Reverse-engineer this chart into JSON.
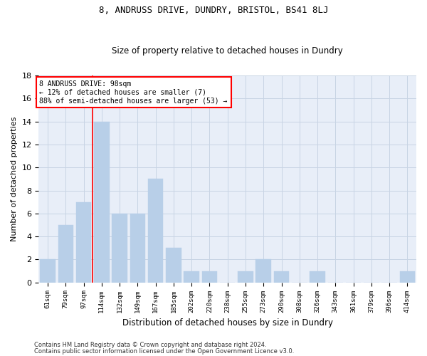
{
  "title1": "8, ANDRUSS DRIVE, DUNDRY, BRISTOL, BS41 8LJ",
  "title2": "Size of property relative to detached houses in Dundry",
  "xlabel": "Distribution of detached houses by size in Dundry",
  "ylabel": "Number of detached properties",
  "categories": [
    "61sqm",
    "79sqm",
    "97sqm",
    "114sqm",
    "132sqm",
    "149sqm",
    "167sqm",
    "185sqm",
    "202sqm",
    "220sqm",
    "238sqm",
    "255sqm",
    "273sqm",
    "290sqm",
    "308sqm",
    "326sqm",
    "343sqm",
    "361sqm",
    "379sqm",
    "396sqm",
    "414sqm"
  ],
  "values": [
    2,
    5,
    7,
    14,
    6,
    6,
    9,
    3,
    1,
    1,
    0,
    1,
    2,
    1,
    0,
    1,
    0,
    0,
    0,
    0,
    1
  ],
  "bar_color": "#b8cfe8",
  "bar_edgecolor": "#b8cfe8",
  "redline_x": 2.5,
  "annotation_title": "8 ANDRUSS DRIVE: 98sqm",
  "annotation_line1": "← 12% of detached houses are smaller (7)",
  "annotation_line2": "88% of semi-detached houses are larger (53) →",
  "ylim": [
    0,
    18
  ],
  "yticks": [
    0,
    2,
    4,
    6,
    8,
    10,
    12,
    14,
    16,
    18
  ],
  "footer1": "Contains HM Land Registry data © Crown copyright and database right 2024.",
  "footer2": "Contains public sector information licensed under the Open Government Licence v3.0.",
  "grid_color": "#c8d4e4",
  "background_color": "#e8eef8"
}
